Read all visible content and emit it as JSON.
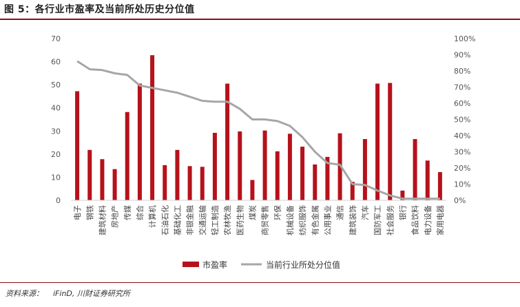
{
  "title": "图 5：各行业市盈率及当前所处历史分位值",
  "source": {
    "label": "资料来源：",
    "text": "iFinD, 川财证券研究所"
  },
  "colors": {
    "bar": "#b5121b",
    "line": "#a6a6a6",
    "rule": "#8b0d12"
  },
  "chart_data": {
    "type": "bar",
    "categories": [
      "电子",
      "钢铁",
      "建筑材料",
      "房地产",
      "传媒",
      "综合",
      "计算机",
      "石油石化",
      "基础化工",
      "非银金融",
      "交通运输",
      "轻工制造",
      "农林牧渔",
      "医药生物",
      "煤炭",
      "商贸零售",
      "环保",
      "机械设备",
      "纺织服饰",
      "有色金属",
      "公用事业",
      "通信",
      "建筑装饰",
      "汽车",
      "国防军工",
      "社会服务",
      "银行",
      "食品饮料",
      "电力设备",
      "家用电器"
    ],
    "series": [
      {
        "name": "市盈率",
        "type": "bar",
        "axis": "left",
        "values": [
          47.2,
          21.8,
          17.8,
          13.5,
          38.2,
          50.5,
          62.8,
          15.2,
          21.8,
          14.8,
          14.5,
          29.2,
          50.5,
          29.8,
          8.8,
          30.2,
          21.2,
          28.8,
          23.2,
          15.5,
          18.8,
          29.0,
          8.0,
          26.5,
          50.5,
          50.8,
          4.2,
          26.5,
          17.2,
          12.2
        ]
      },
      {
        "name": "当前行业所处分位值",
        "type": "line",
        "axis": "right",
        "values": [
          0.86,
          0.81,
          0.805,
          0.785,
          0.775,
          0.71,
          0.695,
          0.68,
          0.665,
          0.64,
          0.615,
          0.61,
          0.61,
          0.565,
          0.5,
          0.5,
          0.49,
          0.46,
          0.39,
          0.3,
          0.23,
          0.22,
          0.1,
          0.095,
          0.06,
          0.03,
          0.01,
          0.01,
          0.01,
          0.01
        ]
      }
    ],
    "y_left": {
      "min": 0,
      "max": 70,
      "ticks": [
        "0",
        "10",
        "20",
        "30",
        "40",
        "50",
        "60",
        "70"
      ]
    },
    "y_right": {
      "min": 0,
      "max": 1,
      "ticks": [
        "0%",
        "10%",
        "20%",
        "30%",
        "40%",
        "50%",
        "60%",
        "70%",
        "80%",
        "90%",
        "100%"
      ]
    },
    "legend": {
      "placement": "bottom"
    },
    "grid": false
  }
}
